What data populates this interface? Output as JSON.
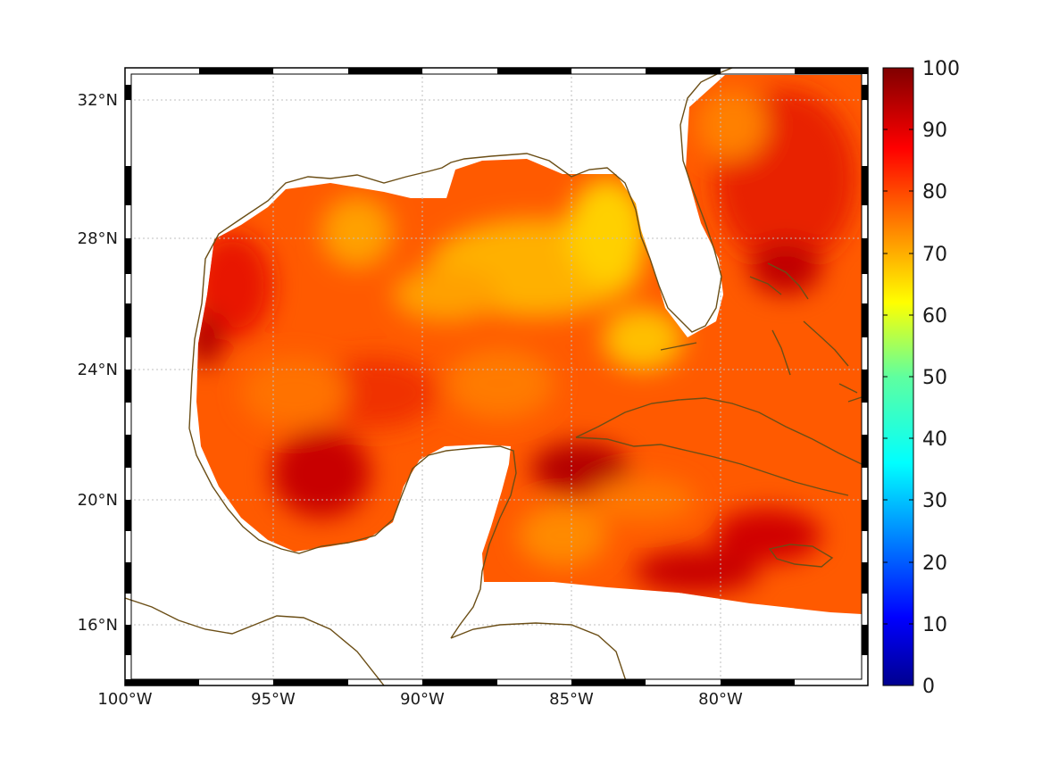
{
  "map": {
    "lon_labels": [
      "100°W",
      "95°W",
      "90°W",
      "85°W",
      "80°W"
    ],
    "lat_labels": [
      "32°N",
      "28°N",
      "24°N",
      "20°N",
      "16°N"
    ]
  },
  "colorbar": {
    "labels": [
      "100",
      "90",
      "80",
      "70",
      "60",
      "50",
      "40",
      "30",
      "20",
      "10",
      "0"
    ],
    "range": [
      0,
      100
    ],
    "colormap": "jet"
  },
  "colors": {
    "coastline": "#6b4e16",
    "frame": "#000000",
    "grid": "#bfbfbf",
    "field_low": "#f2e400",
    "field_mid": "#ff6a00",
    "field_high": "#a00000"
  }
}
